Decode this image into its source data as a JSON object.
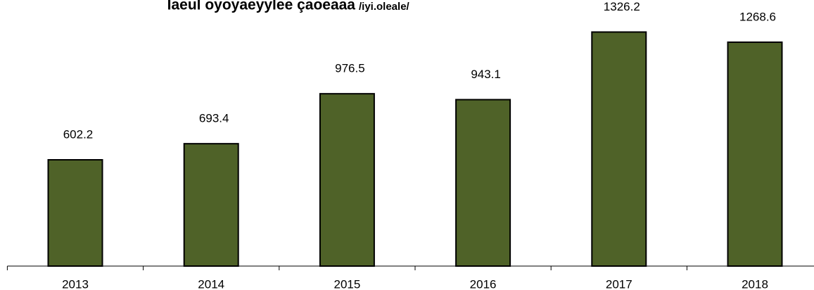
{
  "chart_data": {
    "type": "bar",
    "title": "Iaeul oyoyaeyylee çaoeaaa",
    "subtitle": "/iyi.oleale/",
    "categories": [
      "2013",
      "2014",
      "2015",
      "2016",
      "2017",
      "2018"
    ],
    "values": [
      602.2,
      693.4,
      976.5,
      943.1,
      1326.2,
      1268.6
    ],
    "color": "#4f6228",
    "ylim": [
      0,
      1400
    ]
  }
}
